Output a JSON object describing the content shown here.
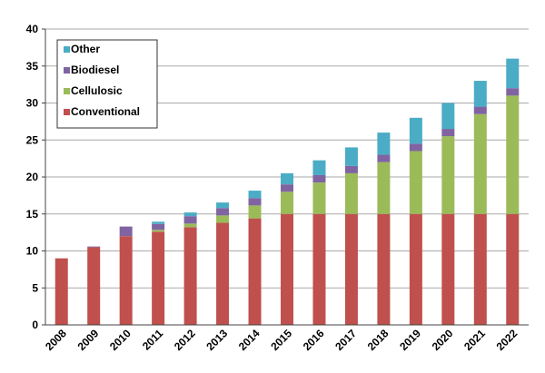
{
  "chart_data": {
    "type": "bar",
    "stacked": true,
    "title": "",
    "xlabel": "",
    "ylabel": "",
    "ylim": [
      0,
      40
    ],
    "yticks": [
      0,
      5,
      10,
      15,
      20,
      25,
      30,
      35,
      40
    ],
    "grid": true,
    "legend_position": "top-left",
    "categories": [
      "2008",
      "2009",
      "2010",
      "2011",
      "2012",
      "2013",
      "2014",
      "2015",
      "2016",
      "2017",
      "2018",
      "2019",
      "2020",
      "2021",
      "2022"
    ],
    "series": [
      {
        "name": "Conventional",
        "color": "#c0504d",
        "values": [
          9,
          10.5,
          12,
          12.6,
          13.2,
          13.8,
          14.4,
          15,
          15,
          15,
          15,
          15,
          15,
          15,
          15
        ]
      },
      {
        "name": "Cellulosic",
        "color": "#9bbb59",
        "values": [
          0,
          0,
          0,
          0.25,
          0.5,
          1,
          1.75,
          3,
          4.25,
          5.5,
          7,
          8.5,
          10.5,
          13.5,
          16
        ]
      },
      {
        "name": "Biodiesel",
        "color": "#8064a2",
        "values": [
          0,
          0.1,
          1.3,
          0.8,
          1,
          1,
          1,
          1,
          1,
          1,
          1,
          1,
          1,
          1,
          1
        ]
      },
      {
        "name": "Other",
        "color": "#4bacc6",
        "values": [
          0,
          0,
          0,
          0.3,
          0.5,
          0.75,
          1,
          1.5,
          2,
          2.5,
          3,
          3.5,
          3.5,
          3.5,
          4
        ]
      }
    ]
  }
}
